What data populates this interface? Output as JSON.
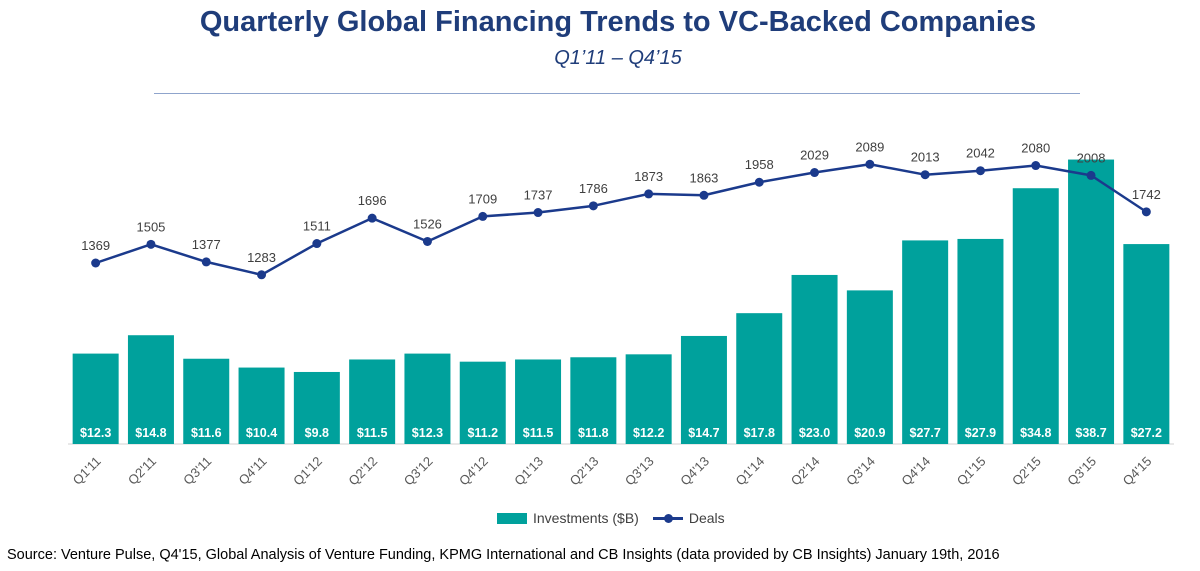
{
  "chart_data": {
    "type": "bar",
    "title": "Quarterly Global Financing Trends to VC-Backed Companies",
    "subtitle": "Q1’11 – Q4’15",
    "categories": [
      "Q1'11",
      "Q2'11",
      "Q3'11",
      "Q4'11",
      "Q1'12",
      "Q2'12",
      "Q3'12",
      "Q4'12",
      "Q1'13",
      "Q2'13",
      "Q3'13",
      "Q4'13",
      "Q1'14",
      "Q2'14",
      "Q3'14",
      "Q4'14",
      "Q1'15",
      "Q2'15",
      "Q3'15",
      "Q4'15"
    ],
    "series": [
      {
        "name": "Investments ($B)",
        "type": "bar",
        "color": "#00a19c",
        "values": [
          12.3,
          14.8,
          11.6,
          10.4,
          9.8,
          11.5,
          12.3,
          11.2,
          11.5,
          11.8,
          12.2,
          14.7,
          17.8,
          23.0,
          20.9,
          27.7,
          27.9,
          34.8,
          38.7,
          27.2
        ],
        "labels": [
          "$12.3",
          "$14.8",
          "$11.6",
          "$10.4",
          "$9.8",
          "$11.5",
          "$12.3",
          "$11.2",
          "$11.5",
          "$11.8",
          "$12.2",
          "$14.7",
          "$17.8",
          "$23.0",
          "$20.9",
          "$27.7",
          "$27.9",
          "$34.8",
          "$38.7",
          "$27.2"
        ]
      },
      {
        "name": "Deals",
        "type": "line",
        "color": "#1b3a8c",
        "values": [
          1369,
          1505,
          1377,
          1283,
          1511,
          1696,
          1526,
          1709,
          1737,
          1786,
          1873,
          1863,
          1958,
          2029,
          2089,
          2013,
          2042,
          2080,
          2008,
          1742
        ]
      }
    ],
    "legend_position": "bottom",
    "grid": false
  },
  "source": "Source: Venture Pulse, Q4'15, Global Analysis of Venture Funding, KPMG International and CB Insights (data provided by CB Insights) January 19th, 2016"
}
